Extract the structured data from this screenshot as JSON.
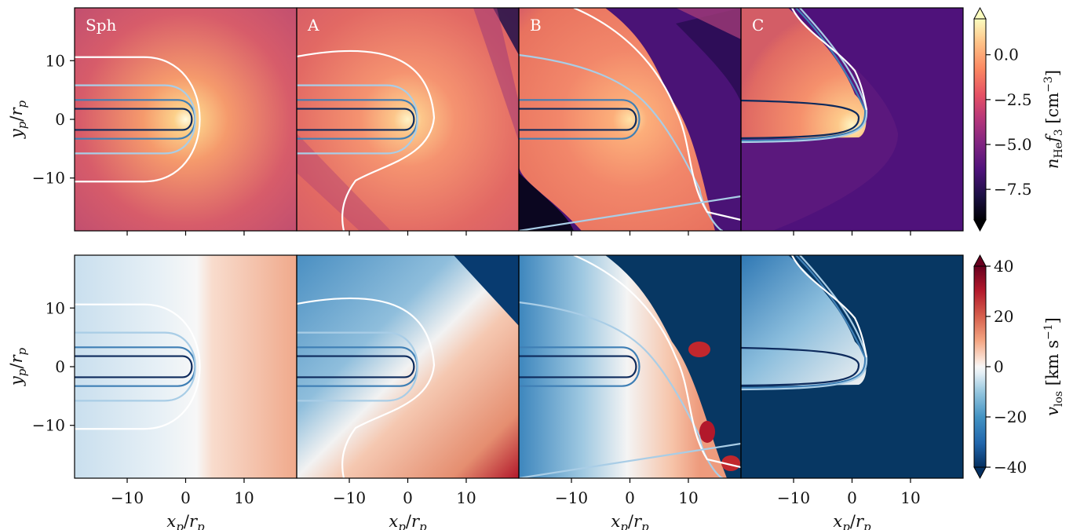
{
  "chart_data": {
    "type": "heatmap",
    "rows": [
      {
        "quantity": "nHe_f3",
        "colormap": "magma",
        "colorbar": {
          "label_main": "n",
          "label_sub": "He",
          "label_f": "f",
          "label_f_sub": "3",
          "label_unit": "[cm",
          "label_exp": "−3",
          "label_close": "]",
          "ticks": [
            0.0,
            -2.5,
            -5.0,
            -7.5
          ],
          "tick_labels": [
            "0.0",
            "−2.5",
            "−5.0",
            "−7.5"
          ],
          "range": [
            -9.2,
            2.0
          ],
          "extend": "both"
        }
      },
      {
        "quantity": "v_los",
        "colormap": "RdBu_r",
        "colorbar": {
          "label_main": "v",
          "label_sub": "los",
          "label_unit": "[km s",
          "label_exp": "−1",
          "label_close": "]",
          "ticks": [
            40,
            20,
            0,
            -20,
            -40
          ],
          "tick_labels": [
            "40",
            "20",
            "0",
            "−20",
            "−40"
          ],
          "range": [
            -40,
            40
          ],
          "extend": "both"
        }
      }
    ],
    "panels": [
      {
        "name": "Sph",
        "show_label": true
      },
      {
        "name": "A",
        "show_label": true
      },
      {
        "name": "B",
        "show_label": true
      },
      {
        "name": "C",
        "show_label": true
      }
    ],
    "xlim": [
      -19,
      19
    ],
    "ylim": [
      -19,
      19
    ],
    "x_ticks": [
      -10,
      0,
      10
    ],
    "x_tick_labels": [
      "−10",
      "0",
      "10"
    ],
    "y_ticks": [
      10,
      0,
      -10
    ],
    "y_tick_labels": [
      "10",
      "0",
      "−10"
    ],
    "xlabel": {
      "main": "x",
      "sub": "p",
      "slash": "/",
      "main2": "r",
      "sub2": "p"
    },
    "ylabel": {
      "main": "y",
      "sub": "p",
      "slash": "/",
      "main2": "r",
      "sub2": "p"
    },
    "contour_colors": [
      "#0d2a5c",
      "#3f7fb5",
      "#a9cde6",
      "#ffffff"
    ]
  }
}
